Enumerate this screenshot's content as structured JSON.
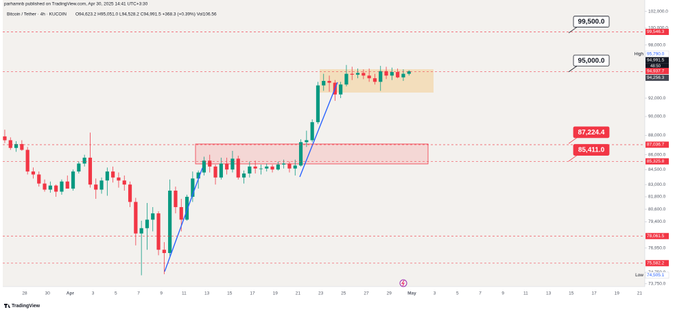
{
  "header": "parhamnb published on TradingView.com, Apr 30, 2025 14:41 UTC+3:30",
  "footer": "TradingView",
  "chart_data": {
    "type": "candlestick",
    "title": "Bitcoin / Tether · 4h · KUCOIN",
    "ohlc_text": "O94,623.2 H95,051.0 L94,528.2 C94,991.5 +368.3 (+0.39%) Vol106.56",
    "log_scale": true,
    "ylim": [
      73500,
      103400
    ],
    "yticks": [
      {
        "value": 102000,
        "label": "102,000.0"
      },
      {
        "value": 100000,
        "label": "100,000.0"
      },
      {
        "value": 98000,
        "label": "98,000.0"
      },
      {
        "value": 92000,
        "label": "92,000.0"
      },
      {
        "value": 90000,
        "label": "90,000.0"
      },
      {
        "value": 88000,
        "label": "88,000.0"
      },
      {
        "value": 86000,
        "label": "86,000.0"
      },
      {
        "value": 84500,
        "label": "84,500.0"
      },
      {
        "value": 83000,
        "label": "83,000.0"
      },
      {
        "value": 81800,
        "label": "81,800.0"
      },
      {
        "value": 80600,
        "label": "80,600.0"
      },
      {
        "value": 79400,
        "label": "79,400.0"
      },
      {
        "value": 76950,
        "label": "76,950.0"
      },
      {
        "value": 74750,
        "label": "74,750.0"
      },
      {
        "value": 73750,
        "label": "73,750.0"
      }
    ],
    "x_labels": [
      "28",
      "30",
      "Apr",
      "3",
      "5",
      "7",
      "9",
      "11",
      "13",
      "15",
      "17",
      "19",
      "21",
      "23",
      "25",
      "27",
      "29",
      "May",
      "3",
      "5",
      "7",
      "9",
      "11",
      "13",
      "15",
      "17",
      "19",
      "21"
    ],
    "up_color": "#089981",
    "down_color": "#f23645",
    "open": [
      87900,
      87500,
      86700,
      87100,
      86500,
      84300,
      84000,
      83100,
      82500,
      82900,
      82300,
      83300,
      82600,
      84300,
      85100,
      85700,
      83000,
      82500,
      83400,
      84300,
      83700,
      83400,
      83000,
      81300,
      78300,
      78800,
      79600,
      80200,
      76800,
      76500,
      82400,
      80800,
      79600,
      81800,
      83600,
      84200,
      85400,
      84800,
      83700,
      85100,
      84500,
      85600,
      83700,
      84100,
      84800,
      84600,
      84600,
      84800,
      84500,
      85000,
      85100,
      84600,
      84900,
      87300,
      87500,
      89400,
      93400,
      93900,
      93700,
      92400,
      93500,
      94700,
      94600,
      94800,
      94500,
      94200,
      93800,
      95000,
      94500,
      94900,
      94300,
      94700
    ],
    "high": [
      88600,
      87800,
      87400,
      87500,
      86800,
      84700,
      84300,
      83500,
      83300,
      83000,
      83500,
      83900,
      84500,
      85300,
      86000,
      88300,
      83600,
      83700,
      84700,
      84800,
      84200,
      83900,
      83300,
      81700,
      79500,
      81200,
      80800,
      80400,
      77500,
      83500,
      82800,
      81600,
      82000,
      84300,
      84400,
      85800,
      86000,
      85000,
      85700,
      85700,
      86400,
      85900,
      84400,
      85300,
      85400,
      85000,
      85100,
      85000,
      85300,
      85500,
      85300,
      85500,
      87600,
      88500,
      89700,
      93800,
      94700,
      94500,
      94000,
      93800,
      95700,
      95500,
      95300,
      95200,
      95300,
      94700,
      95600,
      95500,
      95400,
      95300,
      95200,
      95100
    ],
    "low": [
      87200,
      86500,
      86300,
      86400,
      84000,
      83600,
      82800,
      82300,
      82200,
      81800,
      82000,
      82600,
      82400,
      84100,
      84800,
      82700,
      81600,
      82100,
      81900,
      83200,
      82700,
      82400,
      80800,
      77200,
      74500,
      76800,
      78500,
      76300,
      74600,
      76200,
      80200,
      78500,
      79500,
      81300,
      82600,
      83900,
      84200,
      83000,
      83500,
      84000,
      84200,
      83500,
      83100,
      83700,
      84100,
      84000,
      84300,
      84200,
      84400,
      84600,
      84200,
      83900,
      84800,
      86800,
      87300,
      89200,
      92800,
      92700,
      91700,
      92000,
      93300,
      94000,
      94200,
      94100,
      93800,
      93500,
      92800,
      94100,
      94000,
      94200,
      93900,
      94500
    ],
    "close": [
      87500,
      86700,
      87100,
      86500,
      84300,
      84000,
      83100,
      82500,
      82900,
      82300,
      83300,
      82600,
      84300,
      85100,
      85700,
      83000,
      82500,
      83400,
      84300,
      83700,
      83400,
      83000,
      81300,
      78300,
      78800,
      79600,
      80200,
      76800,
      76500,
      82400,
      80800,
      79600,
      81800,
      83600,
      84200,
      85400,
      84800,
      83700,
      85100,
      84500,
      85600,
      83700,
      84100,
      84800,
      84600,
      84600,
      84800,
      84500,
      85000,
      85100,
      84600,
      84900,
      87300,
      87500,
      89400,
      93400,
      93900,
      93700,
      92400,
      93500,
      94700,
      94600,
      94800,
      94500,
      94200,
      93800,
      95000,
      94500,
      94900,
      94300,
      94700,
      94991.5
    ],
    "levels": [
      {
        "value": 99546.3,
        "label": "99,546.3",
        "color": "#f23645",
        "line": true
      },
      {
        "value": 95790,
        "label": "95,790.0",
        "color": "#ffffff",
        "name": "High"
      },
      {
        "value": 94991.5,
        "label": "94,991.5",
        "color": "#131722",
        "countdown": "48:50"
      },
      {
        "value": 94937.7,
        "label": "94,937.7",
        "color": "#f23645",
        "line": true
      },
      {
        "value": 94256.3,
        "label": "94,256.3",
        "color": "#434651"
      },
      {
        "value": 87036.7,
        "label": "87,036.7",
        "color": "#f23645",
        "line": true
      },
      {
        "value": 85325.8,
        "label": "85,325.8",
        "color": "#f23645",
        "line": true
      },
      {
        "value": 78061.5,
        "label": "78,061.5",
        "color": "#f23645",
        "line": true
      },
      {
        "value": 75582.2,
        "label": "75,582.2",
        "color": "#f23645",
        "line": true
      },
      {
        "value": 74505.1,
        "label": "74,505.1",
        "color": "#ffffff",
        "name": "Low"
      }
    ],
    "callouts": [
      {
        "value": 99500,
        "label": "99,500.0",
        "color": "#ffffff"
      },
      {
        "value": 95000,
        "label": "95,000.0",
        "color": "#ffffff"
      },
      {
        "value": 87224.4,
        "label": "87,224.4",
        "color": "#f23645"
      },
      {
        "value": 85411,
        "label": "85,411.0",
        "color": "#f23645"
      }
    ]
  }
}
